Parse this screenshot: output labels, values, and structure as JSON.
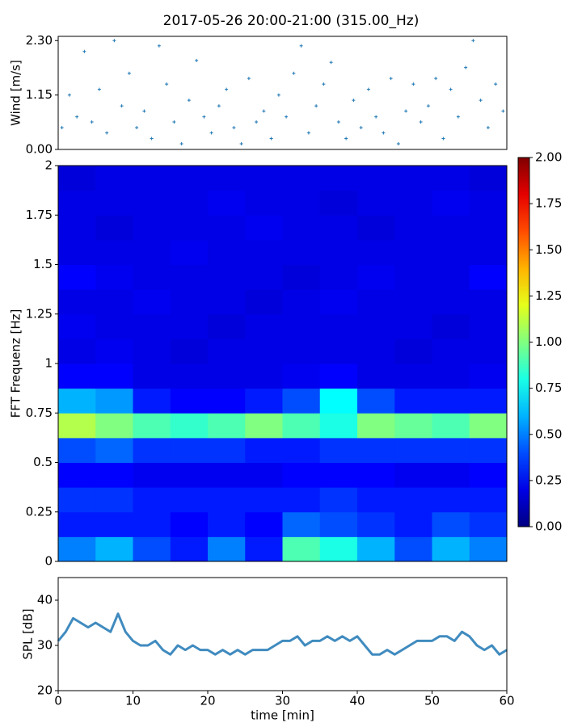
{
  "chart_data": [
    {
      "type": "scatter",
      "title": "2017-05-26 20:00-21:00 (315.00_Hz)",
      "ylabel": "Wind [m/s]",
      "color": "#1f77b4",
      "xlim": [
        0,
        60
      ],
      "ylim": [
        0,
        2.39
      ],
      "yticks": [
        {
          "value": 0,
          "label": "0.00"
        },
        {
          "value": 1.15,
          "label": "1.15"
        },
        {
          "value": 2.3,
          "label": "2.30"
        }
      ],
      "x": [
        0.5,
        1.5,
        2.5,
        3.5,
        4.5,
        5.5,
        6.5,
        7.5,
        8.5,
        9.5,
        10.5,
        11.5,
        12.5,
        13.5,
        14.5,
        15.5,
        16.5,
        17.5,
        18.5,
        19.5,
        20.5,
        21.5,
        22.5,
        23.5,
        24.5,
        25.5,
        26.5,
        27.5,
        28.5,
        29.5,
        30.5,
        31.5,
        32.5,
        33.5,
        34.5,
        35.5,
        36.5,
        37.5,
        38.5,
        39.5,
        40.5,
        41.5,
        42.5,
        43.5,
        44.5,
        45.5,
        46.5,
        47.5,
        48.5,
        49.5,
        50.5,
        51.5,
        52.5,
        53.5,
        54.5,
        55.5,
        56.5,
        57.5,
        58.5,
        59.5
      ],
      "values": [
        0.46,
        1.15,
        0.69,
        2.07,
        0.58,
        1.27,
        0.35,
        2.3,
        0.92,
        1.61,
        0.46,
        0.81,
        0.23,
        2.19,
        1.38,
        0.58,
        0.12,
        1.04,
        1.88,
        0.69,
        0.35,
        0.92,
        1.27,
        0.46,
        0.12,
        1.5,
        0.58,
        0.81,
        0.23,
        1.15,
        0.69,
        1.61,
        2.19,
        0.35,
        0.92,
        1.38,
        1.84,
        0.58,
        0.23,
        1.04,
        0.46,
        1.27,
        0.69,
        0.35,
        1.5,
        0.12,
        0.81,
        1.38,
        0.58,
        0.92,
        1.5,
        0.23,
        1.27,
        0.69,
        1.73,
        2.3,
        1.04,
        0.46,
        1.38,
        0.81
      ]
    },
    {
      "type": "heatmap",
      "ylabel": "FFT Frequenz [Hz]",
      "colormap": "jet",
      "xlim": [
        0,
        60
      ],
      "ylim": [
        0,
        2
      ],
      "yticks": [
        0,
        0.25,
        0.5,
        0.75,
        1,
        1.25,
        1.5,
        1.75,
        2
      ],
      "clim": [
        0,
        2
      ],
      "cticks": [
        {
          "value": 0,
          "label": "0.00"
        },
        {
          "value": 0.25,
          "label": "0.25"
        },
        {
          "value": 0.5,
          "label": "0.50"
        },
        {
          "value": 0.75,
          "label": "0.75"
        },
        {
          "value": 1,
          "label": "1.00"
        },
        {
          "value": 1.25,
          "label": "1.25"
        },
        {
          "value": 1.5,
          "label": "1.50"
        },
        {
          "value": 1.75,
          "label": "1.75"
        },
        {
          "value": 2,
          "label": "2.00"
        }
      ],
      "values": [
        [
          0.5,
          0.6,
          0.4,
          0.3,
          0.5,
          0.3,
          0.9,
          0.8,
          0.6,
          0.4,
          0.6,
          0.5
        ],
        [
          0.3,
          0.3,
          0.3,
          0.25,
          0.3,
          0.25,
          0.45,
          0.4,
          0.35,
          0.3,
          0.4,
          0.35
        ],
        [
          0.35,
          0.35,
          0.3,
          0.3,
          0.3,
          0.3,
          0.3,
          0.35,
          0.3,
          0.3,
          0.3,
          0.3
        ],
        [
          0.25,
          0.25,
          0.22,
          0.22,
          0.22,
          0.22,
          0.25,
          0.25,
          0.25,
          0.22,
          0.22,
          0.25
        ],
        [
          0.4,
          0.45,
          0.35,
          0.35,
          0.35,
          0.3,
          0.3,
          0.35,
          0.35,
          0.35,
          0.35,
          0.35
        ],
        [
          1.1,
          1.0,
          0.9,
          0.85,
          0.9,
          1.0,
          0.9,
          0.8,
          1.0,
          0.95,
          0.9,
          1.0
        ],
        [
          0.6,
          0.55,
          0.3,
          0.25,
          0.25,
          0.3,
          0.4,
          0.75,
          0.4,
          0.3,
          0.3,
          0.3
        ],
        [
          0.25,
          0.25,
          0.2,
          0.2,
          0.2,
          0.2,
          0.22,
          0.25,
          0.2,
          0.2,
          0.2,
          0.22
        ],
        [
          0.2,
          0.22,
          0.2,
          0.18,
          0.2,
          0.2,
          0.2,
          0.2,
          0.2,
          0.18,
          0.2,
          0.2
        ],
        [
          0.22,
          0.2,
          0.2,
          0.2,
          0.18,
          0.2,
          0.2,
          0.2,
          0.2,
          0.2,
          0.18,
          0.2
        ],
        [
          0.2,
          0.2,
          0.22,
          0.2,
          0.2,
          0.18,
          0.2,
          0.22,
          0.2,
          0.2,
          0.2,
          0.2
        ],
        [
          0.25,
          0.22,
          0.2,
          0.2,
          0.2,
          0.2,
          0.18,
          0.2,
          0.22,
          0.2,
          0.2,
          0.25
        ],
        [
          0.2,
          0.2,
          0.2,
          0.22,
          0.2,
          0.2,
          0.2,
          0.2,
          0.2,
          0.2,
          0.2,
          0.2
        ],
        [
          0.2,
          0.18,
          0.2,
          0.2,
          0.2,
          0.22,
          0.2,
          0.2,
          0.18,
          0.2,
          0.2,
          0.2
        ],
        [
          0.2,
          0.2,
          0.2,
          0.2,
          0.22,
          0.2,
          0.2,
          0.18,
          0.2,
          0.2,
          0.22,
          0.2
        ],
        [
          0.18,
          0.2,
          0.2,
          0.2,
          0.2,
          0.2,
          0.2,
          0.2,
          0.2,
          0.2,
          0.2,
          0.18
        ]
      ]
    },
    {
      "type": "line",
      "ylabel": "SPL [dB]",
      "xlabel": "time [min]",
      "color": "#1f77b4",
      "xlim": [
        0,
        60
      ],
      "ylim": [
        20,
        45
      ],
      "yticks": [
        20,
        30,
        40
      ],
      "xticks": [
        0,
        10,
        20,
        30,
        40,
        50,
        60
      ],
      "x": [
        0,
        1,
        2,
        3,
        4,
        5,
        6,
        7,
        8,
        9,
        10,
        11,
        12,
        13,
        14,
        15,
        16,
        17,
        18,
        19,
        20,
        21,
        22,
        23,
        24,
        25,
        26,
        27,
        28,
        29,
        30,
        31,
        32,
        33,
        34,
        35,
        36,
        37,
        38,
        39,
        40,
        41,
        42,
        43,
        44,
        45,
        46,
        47,
        48,
        49,
        50,
        51,
        52,
        53,
        54,
        55,
        56,
        57,
        58,
        59,
        60
      ],
      "values": [
        31,
        33,
        36,
        35,
        34,
        35,
        34,
        33,
        37,
        33,
        31,
        30,
        30,
        31,
        29,
        28,
        30,
        29,
        30,
        29,
        29,
        28,
        29,
        28,
        29,
        28,
        29,
        29,
        29,
        30,
        31,
        31,
        32,
        30,
        31,
        31,
        32,
        31,
        32,
        31,
        32,
        30,
        28,
        28,
        29,
        28,
        29,
        30,
        31,
        31,
        31,
        32,
        32,
        31,
        33,
        32,
        30,
        29,
        30,
        28,
        29
      ]
    }
  ]
}
